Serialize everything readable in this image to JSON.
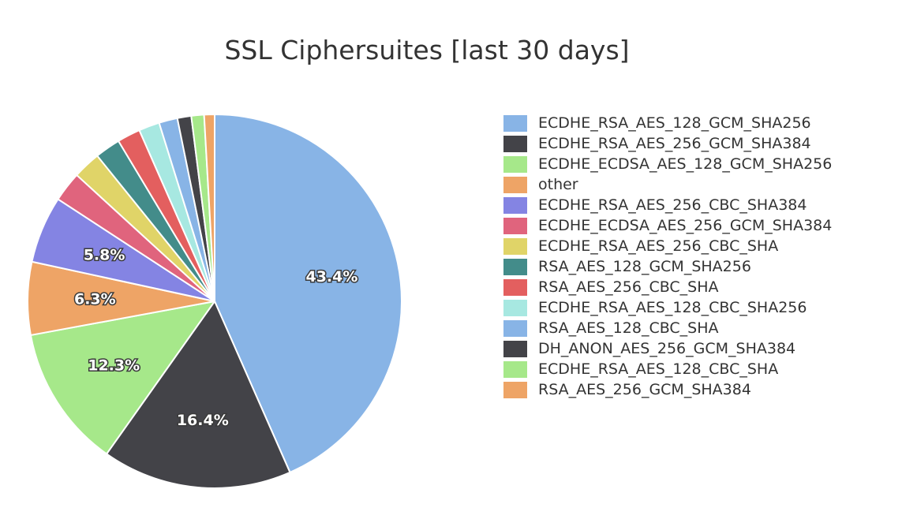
{
  "chart_data": {
    "type": "pie",
    "title": "SSL Ciphersuites [last 30 days]",
    "categories": [
      "ECDHE_RSA_AES_128_GCM_SHA256",
      "ECDHE_RSA_AES_256_GCM_SHA384",
      "ECDHE_ECDSA_AES_128_GCM_SHA256",
      "other",
      "ECDHE_RSA_AES_256_CBC_SHA384",
      "ECDHE_ECDSA_AES_256_GCM_SHA384",
      "ECDHE_RSA_AES_256_CBC_SHA",
      "RSA_AES_128_GCM_SHA256",
      "RSA_AES_256_CBC_SHA",
      "ECDHE_RSA_AES_128_CBC_SHA256",
      "RSA_AES_128_CBC_SHA",
      "DH_ANON_AES_256_GCM_SHA384",
      "ECDHE_RSA_AES_128_CBC_SHA",
      "RSA_AES_256_GCM_SHA384"
    ],
    "values": [
      43.4,
      16.4,
      12.3,
      6.3,
      5.8,
      2.6,
      2.4,
      2.2,
      2.0,
      1.8,
      1.6,
      1.2,
      1.1,
      0.9
    ],
    "data_labels": [
      "43.4%",
      "16.4%",
      "12.3%",
      "6.3%",
      "5.8%",
      "",
      "",
      "",
      "",
      "",
      "",
      "",
      "",
      ""
    ],
    "colors": [
      "#88b4e6",
      "#434348",
      "#a6e88a",
      "#eea466",
      "#8484e3",
      "#e0647d",
      "#e0d468",
      "#438c8a",
      "#e35f5f",
      "#a7e8e1",
      "#88b4e6",
      "#434348",
      "#a6e88a",
      "#eea466"
    ],
    "start_angle_deg": 0,
    "direction": "clockwise",
    "legend": {
      "position": "right"
    }
  }
}
